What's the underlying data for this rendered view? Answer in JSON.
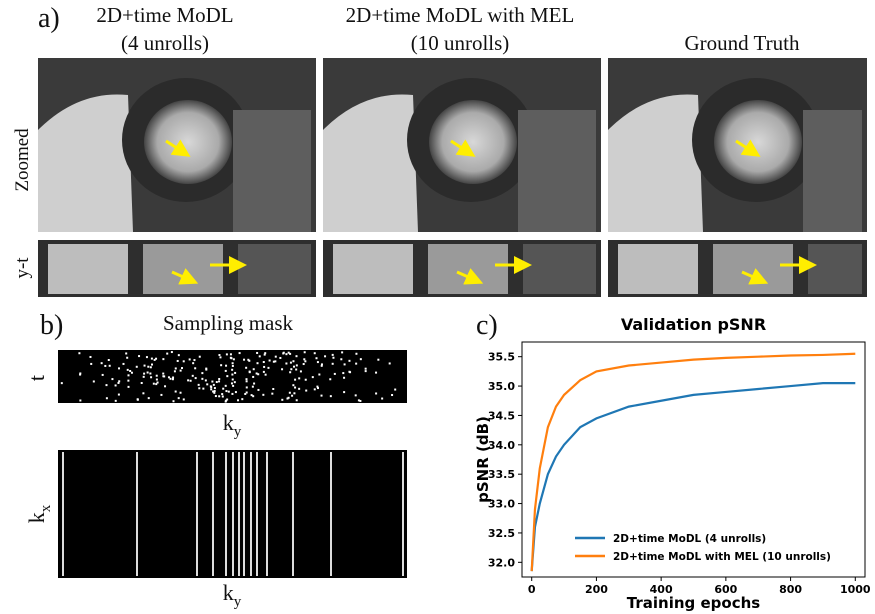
{
  "panel_a": {
    "label": "a)",
    "columns": [
      {
        "title_lines": [
          "2D+time MoDL",
          "(4 unrolls)"
        ]
      },
      {
        "title_lines": [
          "2D+time MoDL with MEL",
          "(10 unrolls)"
        ]
      },
      {
        "title_lines": [
          "Ground Truth"
        ]
      }
    ],
    "rows": [
      "Zoomed",
      "y-t"
    ]
  },
  "panel_b": {
    "label": "b)",
    "title": "Sampling mask",
    "plots": [
      {
        "y_label": "t",
        "x_label": "k",
        "x_label_sub": "y"
      },
      {
        "y_label": "k",
        "y_label_sub": "x",
        "x_label": "k",
        "x_label_sub": "y"
      }
    ]
  },
  "panel_c": {
    "label": "c)"
  },
  "chart_data": {
    "type": "line",
    "title": "Validation pSNR",
    "x_label": "Training epochs",
    "y_label": "pSNR (dB)",
    "x": [
      0,
      10,
      25,
      50,
      75,
      100,
      150,
      200,
      300,
      400,
      500,
      600,
      700,
      800,
      900,
      1000
    ],
    "series": [
      {
        "name": "2D+time MoDL (4 unrolls)",
        "color": "#1f77b4",
        "values": [
          31.85,
          32.6,
          33.0,
          33.5,
          33.8,
          34.0,
          34.3,
          34.45,
          34.65,
          34.75,
          34.85,
          34.9,
          34.95,
          35.0,
          35.05,
          35.05
        ]
      },
      {
        "name": "2D+time MoDL with MEL (10 unrolls)",
        "color": "#ff7f0e",
        "values": [
          31.85,
          32.9,
          33.6,
          34.3,
          34.65,
          34.85,
          35.1,
          35.25,
          35.35,
          35.4,
          35.45,
          35.48,
          35.5,
          35.52,
          35.53,
          35.55
        ]
      }
    ],
    "xlim": [
      -30,
      1030
    ],
    "xticks": [
      0,
      200,
      400,
      600,
      800,
      1000
    ],
    "ylim": [
      31.75,
      35.75
    ],
    "yticks": [
      {
        "value": 32,
        "label": "32.0"
      },
      32.5,
      {
        "value": 33,
        "label": "33.0"
      },
      33.5,
      {
        "value": 34,
        "label": "34.0"
      },
      34.5,
      {
        "value": 35,
        "label": "35.0"
      },
      35.5
    ],
    "legend": "lower right",
    "grid": false
  }
}
